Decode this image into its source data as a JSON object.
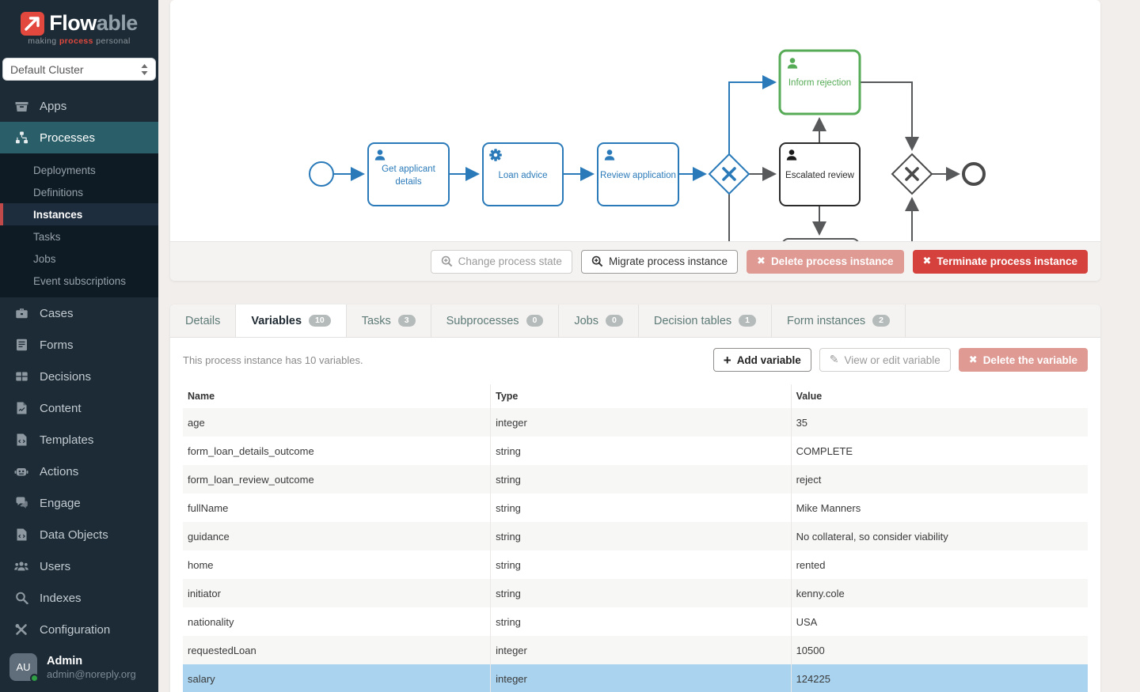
{
  "colors": {
    "sidebar_bg": "#1c2b36",
    "submenu_bg": "#0f1b24",
    "active_nav_teal": "#2a5e69",
    "selected_accent_red": "#bf4a49",
    "brand_red": "#e2483d",
    "diagram_blue": "#2a7ab9",
    "diagram_green": "#56ab56",
    "diagram_dark": "#2b2b2b",
    "diagram_gray": "#58595b",
    "danger_red": "#d5423e",
    "danger_pink": "#df9a94",
    "selected_row_blue": "#a9d3ee",
    "badge_gray": "#b5bbba",
    "online_dot_green": "#2f9e44"
  },
  "sidebar": {
    "logo": {
      "brand_strong": "Flow",
      "brand_light": "able",
      "tagline_pre": "making ",
      "tagline_accent": "process",
      "tagline_post": " personal"
    },
    "cluster_select": {
      "value": "Default Cluster"
    },
    "items": [
      {
        "label": "Apps",
        "icon": "apps-icon"
      },
      {
        "label": "Processes",
        "icon": "processes-icon",
        "active": true,
        "children": [
          {
            "label": "Deployments"
          },
          {
            "label": "Definitions"
          },
          {
            "label": "Instances",
            "selected": true
          },
          {
            "label": "Tasks"
          },
          {
            "label": "Jobs"
          },
          {
            "label": "Event subscriptions"
          }
        ]
      },
      {
        "label": "Cases",
        "icon": "cases-icon"
      },
      {
        "label": "Forms",
        "icon": "forms-icon"
      },
      {
        "label": "Decisions",
        "icon": "decisions-icon"
      },
      {
        "label": "Content",
        "icon": "content-icon"
      },
      {
        "label": "Templates",
        "icon": "templates-icon"
      },
      {
        "label": "Actions",
        "icon": "actions-icon"
      },
      {
        "label": "Engage",
        "icon": "engage-icon"
      },
      {
        "label": "Data Objects",
        "icon": "data-objects-icon"
      },
      {
        "label": "Users",
        "icon": "users-icon"
      },
      {
        "label": "Indexes",
        "icon": "indexes-icon"
      },
      {
        "label": "Configuration",
        "icon": "configuration-icon"
      }
    ],
    "user": {
      "initials": "AU",
      "name": "Admin",
      "email": "admin@noreply.org"
    }
  },
  "diagram": {
    "nodes": {
      "task_get_applicant_details": "Get applicant details",
      "task_loan_advice": "Loan advice",
      "task_review_application": "Review application",
      "task_inform_rejection": "Inform rejection",
      "task_escalated_review": "Escalated review"
    }
  },
  "process_actions": {
    "change_state": "Change process state",
    "migrate": "Migrate process instance",
    "delete": "Delete process instance",
    "terminate": "Terminate process instance"
  },
  "tabs": [
    {
      "label": "Details"
    },
    {
      "label": "Variables",
      "count": "10",
      "active": true
    },
    {
      "label": "Tasks",
      "count": "3"
    },
    {
      "label": "Subprocesses",
      "count": "0"
    },
    {
      "label": "Jobs",
      "count": "0"
    },
    {
      "label": "Decision tables",
      "count": "1"
    },
    {
      "label": "Form instances",
      "count": "2"
    }
  ],
  "variables": {
    "summary": "This process instance has 10 variables.",
    "buttons": {
      "add": "Add variable",
      "edit": "View or edit variable",
      "delete": "Delete the variable"
    },
    "table": {
      "columns": [
        "Name",
        "Type",
        "Value"
      ],
      "rows": [
        [
          "age",
          "integer",
          "35"
        ],
        [
          "form_loan_details_outcome",
          "string",
          "COMPLETE"
        ],
        [
          "form_loan_review_outcome",
          "string",
          "reject"
        ],
        [
          "fullName",
          "string",
          "Mike Manners"
        ],
        [
          "guidance",
          "string",
          "No collateral, so consider viability"
        ],
        [
          "home",
          "string",
          "rented"
        ],
        [
          "initiator",
          "string",
          "kenny.cole"
        ],
        [
          "nationality",
          "string",
          "USA"
        ],
        [
          "requestedLoan",
          "integer",
          "10500"
        ],
        [
          "salary",
          "integer",
          "124225"
        ]
      ],
      "selected_row": 9
    }
  }
}
